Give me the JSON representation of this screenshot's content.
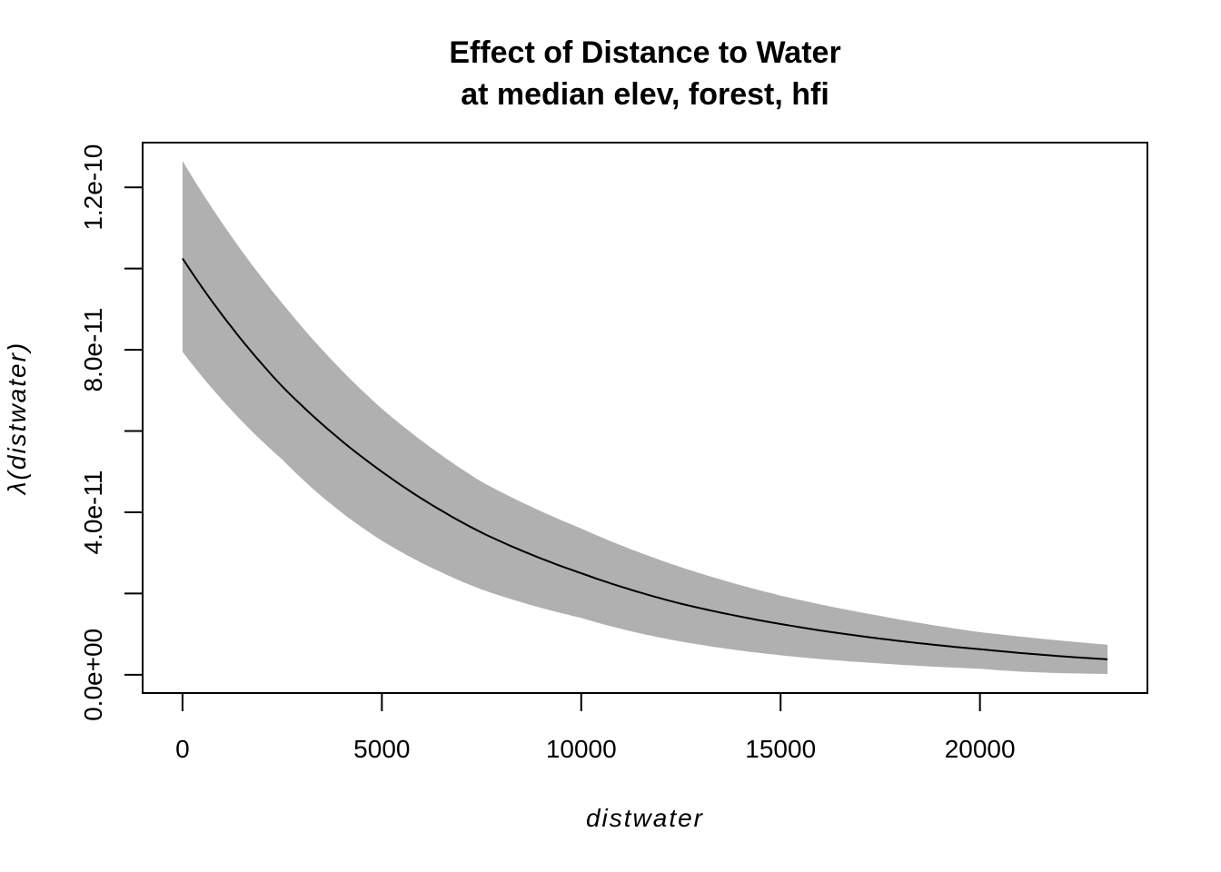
{
  "chart_data": {
    "type": "area",
    "title": [
      "Effect of Distance to Water",
      "at median elev, forest, hfi"
    ],
    "xlabel": "distwater",
    "ylabel": "λ(distwater)",
    "xlim": [
      -1000,
      24200
    ],
    "ylim": [
      -4.5e-12,
      1.31e-10
    ],
    "x_ticks": [
      0,
      5000,
      10000,
      15000,
      20000
    ],
    "x_tick_labels": [
      "0",
      "5000",
      "10000",
      "15000",
      "20000"
    ],
    "y_ticks": [
      0,
      2e-11,
      4e-11,
      6e-11,
      8e-11,
      1e-10,
      1.2e-10
    ],
    "y_tick_labels": [
      "0.0e+00",
      "",
      "4.0e-11",
      "",
      "8.0e-11",
      "",
      "1.2e-10"
    ],
    "grid": false,
    "legend": "none",
    "series": [
      {
        "role": "estimate",
        "color": "#000000",
        "x": [
          0,
          2500,
          5000,
          7500,
          10000,
          12500,
          15000,
          17500,
          20000,
          23200
        ],
        "y": [
          1.025e-10,
          7.1e-11,
          5e-11,
          3.5e-11,
          2.5e-11,
          1.75e-11,
          1.25e-11,
          8.9e-12,
          6.3e-12,
          3.8e-12
        ]
      },
      {
        "role": "confidence-band",
        "color": "#b0b0b0",
        "x": [
          0,
          2500,
          5000,
          7500,
          10000,
          12500,
          15000,
          17500,
          20000,
          23200
        ],
        "lower": [
          7.95e-11,
          5.3e-11,
          3.3e-11,
          2.1e-11,
          1.4e-11,
          8.2e-12,
          4.8e-12,
          2.8e-12,
          1.5e-12,
          2e-13
        ],
        "upper": [
          1.265e-10,
          9.15e-11,
          6.55e-11,
          4.75e-11,
          3.6e-11,
          2.65e-11,
          1.95e-11,
          1.45e-11,
          1.05e-11,
          7.4e-12
        ]
      }
    ]
  }
}
